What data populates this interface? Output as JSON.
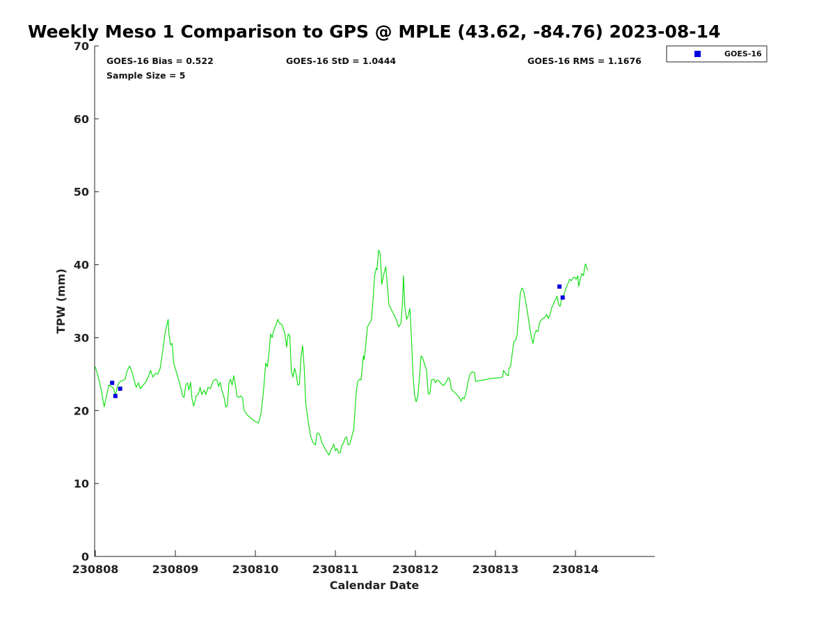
{
  "chart_data": {
    "type": "line",
    "title": "Weekly Meso 1 Comparison to GPS @ MPLE (43.62, -84.76) 2023-08-14",
    "xlabel": "Calendar Date",
    "ylabel": "TPW (mm)",
    "xlim": [
      0,
      7
    ],
    "ylim": [
      0,
      70
    ],
    "x_ticks": [
      {
        "value": 0,
        "label": "230808"
      },
      {
        "value": 1,
        "label": "230809"
      },
      {
        "value": 2,
        "label": "230810"
      },
      {
        "value": 3,
        "label": "230811"
      },
      {
        "value": 4,
        "label": "230812"
      },
      {
        "value": 5,
        "label": "230813"
      },
      {
        "value": 6,
        "label": "230814"
      }
    ],
    "y_ticks": [
      {
        "value": 0,
        "label": "0"
      },
      {
        "value": 10,
        "label": "10"
      },
      {
        "value": 20,
        "label": "20"
      },
      {
        "value": 30,
        "label": "30"
      },
      {
        "value": 40,
        "label": "40"
      },
      {
        "value": 50,
        "label": "50"
      },
      {
        "value": 60,
        "label": "60"
      },
      {
        "value": 70,
        "label": "70"
      }
    ],
    "stats": {
      "bias": "GOES-16 Bias = 0.522",
      "std": "GOES-16 StD = 1.0444",
      "rms": "GOES-16 RMS = 1.1676",
      "sample": "Sample Size = 5"
    },
    "legend": {
      "label": "GOES-16",
      "placement": "top-right outside"
    },
    "colors": {
      "gps_line": "#00dd00",
      "goes_marker": "#0000dd"
    },
    "series": [
      {
        "name": "GPS",
        "kind": "line",
        "points": [
          [
            0.0,
            26.0
          ],
          [
            0.04,
            24.5
          ],
          [
            0.08,
            22.5
          ],
          [
            0.11,
            20.5
          ],
          [
            0.14,
            22.0
          ],
          [
            0.17,
            23.5
          ],
          [
            0.2,
            23.3
          ],
          [
            0.23,
            23.0
          ],
          [
            0.25,
            22.1
          ],
          [
            0.28,
            23.5
          ],
          [
            0.31,
            24.0
          ],
          [
            0.34,
            24.1
          ],
          [
            0.37,
            24.3
          ],
          [
            0.4,
            25.5
          ],
          [
            0.43,
            26.1
          ],
          [
            0.46,
            25.2
          ],
          [
            0.49,
            24.0
          ],
          [
            0.51,
            23.2
          ],
          [
            0.54,
            23.8
          ],
          [
            0.56,
            23.0
          ],
          [
            0.6,
            23.5
          ],
          [
            0.63,
            23.9
          ],
          [
            0.66,
            24.6
          ],
          [
            0.69,
            25.5
          ],
          [
            0.72,
            24.6
          ],
          [
            0.75,
            25.1
          ],
          [
            0.78,
            25.0
          ],
          [
            0.81,
            25.8
          ],
          [
            0.84,
            28.0
          ],
          [
            0.87,
            30.5
          ],
          [
            0.89,
            31.5
          ],
          [
            0.91,
            32.5
          ],
          [
            0.92,
            30.5
          ],
          [
            0.94,
            29.0
          ],
          [
            0.96,
            29.2
          ],
          [
            0.98,
            26.5
          ],
          [
            1.02,
            25.0
          ],
          [
            1.06,
            23.5
          ],
          [
            1.09,
            22.0
          ],
          [
            1.11,
            21.8
          ],
          [
            1.13,
            23.5
          ],
          [
            1.15,
            23.8
          ],
          [
            1.17,
            22.8
          ],
          [
            1.19,
            23.9
          ],
          [
            1.21,
            21.5
          ],
          [
            1.23,
            20.6
          ],
          [
            1.26,
            22.0
          ],
          [
            1.29,
            22.3
          ],
          [
            1.31,
            23.2
          ],
          [
            1.33,
            22.2
          ],
          [
            1.36,
            22.8
          ],
          [
            1.38,
            22.2
          ],
          [
            1.41,
            23.2
          ],
          [
            1.44,
            23.0
          ],
          [
            1.47,
            24.0
          ],
          [
            1.5,
            24.3
          ],
          [
            1.52,
            24.2
          ],
          [
            1.54,
            23.3
          ],
          [
            1.56,
            23.9
          ],
          [
            1.58,
            22.8
          ],
          [
            1.61,
            21.8
          ],
          [
            1.63,
            20.5
          ],
          [
            1.65,
            20.7
          ],
          [
            1.67,
            23.8
          ],
          [
            1.69,
            24.3
          ],
          [
            1.71,
            23.5
          ],
          [
            1.73,
            24.8
          ],
          [
            1.75,
            23.5
          ],
          [
            1.77,
            22.0
          ],
          [
            1.79,
            21.8
          ],
          [
            1.82,
            22.0
          ],
          [
            1.84,
            21.7
          ],
          [
            1.86,
            20.0
          ],
          [
            1.9,
            19.4
          ],
          [
            1.95,
            18.9
          ],
          [
            2.0,
            18.5
          ],
          [
            2.04,
            18.3
          ],
          [
            2.07,
            19.5
          ],
          [
            2.1,
            22.5
          ],
          [
            2.13,
            26.5
          ],
          [
            2.15,
            26.0
          ],
          [
            2.17,
            28.0
          ],
          [
            2.19,
            30.5
          ],
          [
            2.21,
            30.0
          ],
          [
            2.23,
            31.0
          ],
          [
            2.26,
            31.8
          ],
          [
            2.28,
            32.5
          ],
          [
            2.3,
            32.0
          ],
          [
            2.33,
            31.8
          ],
          [
            2.35,
            31.2
          ],
          [
            2.37,
            30.5
          ],
          [
            2.39,
            28.7
          ],
          [
            2.41,
            30.5
          ],
          [
            2.43,
            30.3
          ],
          [
            2.45,
            25.3
          ],
          [
            2.47,
            24.6
          ],
          [
            2.49,
            25.8
          ],
          [
            2.51,
            25.0
          ],
          [
            2.53,
            23.5
          ],
          [
            2.55,
            23.6
          ],
          [
            2.57,
            27.2
          ],
          [
            2.59,
            28.9
          ],
          [
            2.61,
            26.0
          ],
          [
            2.63,
            21.0
          ],
          [
            2.66,
            18.5
          ],
          [
            2.69,
            16.5
          ],
          [
            2.72,
            15.6
          ],
          [
            2.75,
            15.3
          ],
          [
            2.77,
            16.9
          ],
          [
            2.79,
            16.9
          ],
          [
            2.81,
            16.5
          ],
          [
            2.83,
            15.6
          ],
          [
            2.86,
            15.0
          ],
          [
            2.89,
            14.4
          ],
          [
            2.92,
            13.9
          ],
          [
            2.94,
            14.5
          ],
          [
            2.96,
            14.9
          ],
          [
            2.98,
            15.4
          ],
          [
            3.0,
            14.5
          ],
          [
            3.02,
            14.8
          ],
          [
            3.04,
            14.2
          ],
          [
            3.06,
            14.2
          ],
          [
            3.08,
            15.2
          ],
          [
            3.1,
            15.5
          ],
          [
            3.12,
            16.2
          ],
          [
            3.14,
            16.4
          ],
          [
            3.16,
            15.3
          ],
          [
            3.18,
            15.4
          ],
          [
            3.2,
            16.2
          ],
          [
            3.23,
            17.5
          ],
          [
            3.26,
            22.5
          ],
          [
            3.28,
            24.0
          ],
          [
            3.3,
            24.3
          ],
          [
            3.32,
            24.2
          ],
          [
            3.35,
            27.5
          ],
          [
            3.36,
            27.0
          ],
          [
            3.38,
            29.0
          ],
          [
            3.4,
            31.5
          ],
          [
            3.43,
            32.0
          ],
          [
            3.45,
            32.5
          ],
          [
            3.47,
            35.0
          ],
          [
            3.49,
            38.5
          ],
          [
            3.51,
            39.5
          ],
          [
            3.52,
            39.3
          ],
          [
            3.54,
            42.0
          ],
          [
            3.56,
            41.5
          ],
          [
            3.58,
            37.3
          ],
          [
            3.6,
            38.5
          ],
          [
            3.63,
            39.7
          ],
          [
            3.65,
            37.0
          ],
          [
            3.67,
            34.5
          ],
          [
            3.7,
            33.8
          ],
          [
            3.73,
            33.2
          ],
          [
            3.76,
            32.5
          ],
          [
            3.79,
            31.5
          ],
          [
            3.82,
            32.0
          ],
          [
            3.84,
            35.0
          ],
          [
            3.85,
            38.5
          ],
          [
            3.87,
            34.0
          ],
          [
            3.89,
            32.5
          ],
          [
            3.91,
            33.0
          ],
          [
            3.93,
            34.0
          ],
          [
            3.95,
            30.0
          ],
          [
            3.97,
            25.0
          ],
          [
            3.99,
            22.0
          ],
          [
            4.01,
            21.2
          ],
          [
            4.03,
            22.0
          ],
          [
            4.05,
            24.5
          ],
          [
            4.07,
            27.5
          ],
          [
            4.09,
            27.2
          ],
          [
            4.11,
            26.5
          ],
          [
            4.14,
            25.5
          ],
          [
            4.16,
            22.3
          ],
          [
            4.18,
            22.3
          ],
          [
            4.2,
            24.2
          ],
          [
            4.23,
            24.3
          ],
          [
            4.25,
            23.8
          ],
          [
            4.27,
            24.2
          ],
          [
            4.3,
            24.0
          ],
          [
            4.32,
            23.7
          ],
          [
            4.35,
            23.4
          ],
          [
            4.38,
            23.8
          ],
          [
            4.41,
            24.5
          ],
          [
            4.43,
            24.3
          ],
          [
            4.45,
            22.9
          ],
          [
            4.48,
            22.6
          ],
          [
            4.51,
            22.3
          ],
          [
            4.54,
            21.9
          ],
          [
            4.57,
            21.3
          ],
          [
            4.59,
            21.8
          ],
          [
            4.61,
            21.6
          ],
          [
            4.64,
            22.8
          ],
          [
            4.66,
            24.0
          ],
          [
            4.68,
            25.0
          ],
          [
            4.71,
            25.3
          ],
          [
            4.74,
            25.2
          ],
          [
            4.75,
            24.0
          ],
          [
            4.85,
            24.2
          ],
          [
            4.95,
            24.4
          ],
          [
            5.05,
            24.5
          ],
          [
            5.09,
            24.6
          ],
          [
            5.1,
            25.5
          ],
          [
            5.13,
            25.0
          ],
          [
            5.16,
            24.8
          ],
          [
            5.17,
            25.8
          ],
          [
            5.19,
            26.1
          ],
          [
            5.2,
            27.0
          ],
          [
            5.23,
            29.5
          ],
          [
            5.25,
            29.6
          ],
          [
            5.27,
            30.3
          ],
          [
            5.29,
            33.0
          ],
          [
            5.31,
            36.0
          ],
          [
            5.33,
            36.8
          ],
          [
            5.35,
            36.5
          ],
          [
            5.37,
            35.5
          ],
          [
            5.4,
            33.5
          ],
          [
            5.42,
            32.0
          ],
          [
            5.45,
            30.0
          ],
          [
            5.47,
            29.2
          ],
          [
            5.49,
            30.5
          ],
          [
            5.51,
            31.0
          ],
          [
            5.53,
            30.8
          ],
          [
            5.55,
            32.0
          ],
          [
            5.57,
            32.4
          ],
          [
            5.6,
            32.7
          ],
          [
            5.62,
            32.8
          ],
          [
            5.64,
            33.2
          ],
          [
            5.66,
            32.6
          ],
          [
            5.68,
            33.0
          ],
          [
            5.7,
            34.0
          ],
          [
            5.73,
            34.8
          ],
          [
            5.75,
            35.2
          ],
          [
            5.77,
            35.7
          ],
          [
            5.79,
            34.5
          ],
          [
            5.81,
            34.3
          ],
          [
            5.83,
            35.5
          ],
          [
            5.86,
            36.0
          ],
          [
            5.88,
            36.8
          ],
          [
            5.91,
            37.5
          ],
          [
            5.93,
            38.0
          ],
          [
            5.95,
            37.8
          ],
          [
            5.97,
            38.2
          ],
          [
            5.99,
            38.3
          ],
          [
            6.01,
            38.0
          ],
          [
            6.03,
            38.5
          ],
          [
            6.04,
            37.0
          ],
          [
            6.06,
            38.0
          ],
          [
            6.08,
            38.8
          ],
          [
            6.1,
            38.5
          ],
          [
            6.12,
            40.0
          ],
          [
            6.13,
            40.1
          ],
          [
            6.15,
            39.2
          ]
        ]
      },
      {
        "name": "GOES-16",
        "kind": "marker",
        "points": [
          [
            0.21,
            23.8
          ],
          [
            0.25,
            22.0
          ],
          [
            0.31,
            23.0
          ],
          [
            5.8,
            37.0
          ],
          [
            5.84,
            35.5
          ]
        ]
      }
    ]
  }
}
